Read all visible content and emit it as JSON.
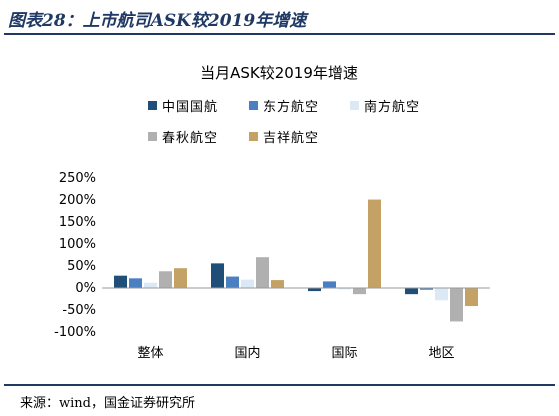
{
  "figure": {
    "title": "图表28：上市航司ASK较2019年增速",
    "source": "来源：wind，国金证券研究所"
  },
  "chart_data": {
    "type": "bar",
    "title": "当月ASK较2019年增速",
    "xlabel": "",
    "ylabel": "",
    "categories": [
      "整体",
      "国内",
      "国际",
      "地区"
    ],
    "ylim": [
      -100,
      250
    ],
    "yticks": [
      -100,
      -50,
      0,
      50,
      100,
      150,
      200,
      250
    ],
    "ytick_labels": [
      "-100%",
      "-50%",
      "0%",
      "50%",
      "100%",
      "150%",
      "200%",
      "250%"
    ],
    "grid": false,
    "legend_position": "top",
    "series": [
      {
        "name": "中国国航",
        "color": "#1f4e79",
        "values": [
          28,
          56,
          -7,
          -14
        ]
      },
      {
        "name": "东方航空",
        "color": "#4a7fc1",
        "values": [
          22,
          26,
          15,
          -4
        ]
      },
      {
        "name": "南方航空",
        "color": "#dbe8f5",
        "values": [
          12,
          19,
          -3,
          -28
        ]
      },
      {
        "name": "春秋航空",
        "color": "#b0b0b0",
        "values": [
          38,
          70,
          -14,
          -76
        ]
      },
      {
        "name": "吉祥航空",
        "color": "#c4a265",
        "values": [
          45,
          18,
          201,
          -41
        ]
      }
    ]
  }
}
